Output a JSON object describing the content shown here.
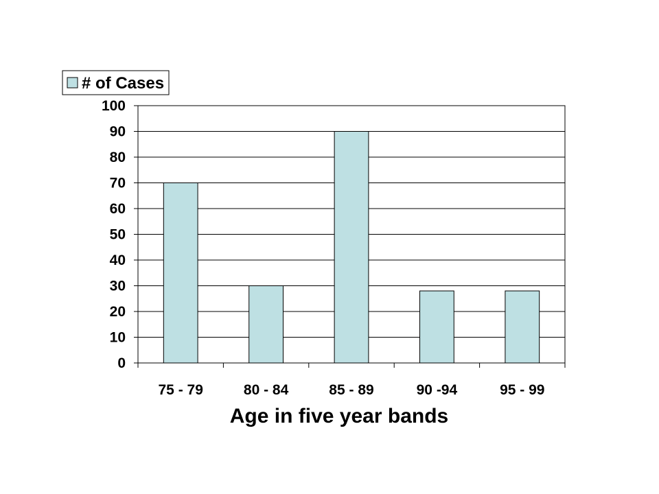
{
  "chart_data": {
    "type": "bar",
    "categories": [
      "75 - 79",
      "80 - 84",
      "85 - 89",
      "90 -94",
      "95 - 99"
    ],
    "series": [
      {
        "name": "# of Cases",
        "values": [
          70,
          30,
          90,
          28,
          28
        ]
      }
    ],
    "xlabel": "Age in five year bands",
    "ylabel": "",
    "ylim": [
      0,
      100
    ],
    "yticks": [
      0,
      10,
      20,
      30,
      40,
      50,
      60,
      70,
      80,
      90,
      100
    ],
    "grid": true,
    "legend": {
      "placement": "top-left",
      "entries": [
        "# of Cases"
      ]
    },
    "colors": {
      "bar_fill": "#BEE0E3",
      "bar_stroke": "#000000",
      "grid": "#000000"
    }
  }
}
